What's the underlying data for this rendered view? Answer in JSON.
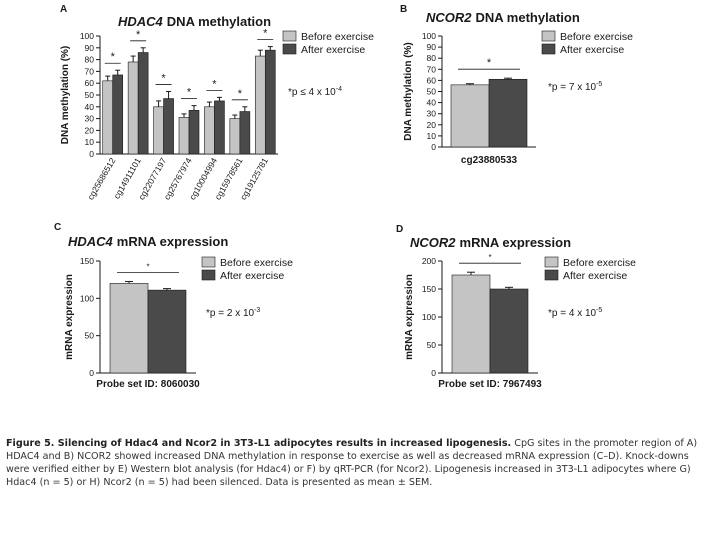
{
  "chart_data": [
    {
      "panel_label": "A",
      "type": "bar",
      "title_gene": "HDAC4",
      "title_rest": "DNA methylation",
      "ylabel": "DNA methylation (%)",
      "xlabel": "",
      "ylim": [
        0,
        100
      ],
      "yticks": [
        0,
        10,
        20,
        30,
        40,
        50,
        60,
        70,
        80,
        90,
        100
      ],
      "categories": [
        "cg25686512",
        "cg14911101",
        "cg22077197",
        "cg25767974",
        "cg10004994",
        "cg15978561",
        "cg19125781"
      ],
      "series": [
        {
          "name": "Before exercise",
          "color": "#c4c4c4",
          "values": [
            62,
            78,
            40,
            31,
            40,
            30,
            83
          ],
          "errors": [
            4,
            5,
            5,
            3,
            4,
            3,
            5
          ]
        },
        {
          "name": "After exercise",
          "color": "#4a4a4a",
          "values": [
            67,
            86,
            47,
            37,
            45,
            36,
            88
          ],
          "errors": [
            4,
            4,
            6,
            4,
            3,
            4,
            3
          ]
        }
      ],
      "significance": [
        "*",
        "*",
        "*",
        "*",
        "*",
        "*",
        "*"
      ],
      "annotation": {
        "prefix": "*p ≤ 4 x 10",
        "exponent": "-4"
      },
      "legend_position": "top-right"
    },
    {
      "panel_label": "B",
      "type": "bar",
      "title_gene": "NCOR2",
      "title_rest": "DNA methylation",
      "ylabel": "DNA methylation (%)",
      "xlabel": "",
      "ylim": [
        0,
        100
      ],
      "yticks": [
        0,
        10,
        20,
        30,
        40,
        50,
        60,
        70,
        80,
        90,
        100
      ],
      "categories": [
        "cg23880533"
      ],
      "series": [
        {
          "name": "Before exercise",
          "color": "#c4c4c4",
          "values": [
            56
          ],
          "errors": [
            1
          ]
        },
        {
          "name": "After exercise",
          "color": "#4a4a4a",
          "values": [
            61
          ],
          "errors": [
            1
          ]
        }
      ],
      "significance": [
        "*"
      ],
      "annotation": {
        "prefix": "*p = 7 x 10",
        "exponent": "-5"
      },
      "legend_position": "top-right"
    },
    {
      "panel_label": "C",
      "type": "bar",
      "title_gene": "HDAC4",
      "title_rest": "mRNA expression",
      "ylabel": "mRNA expression",
      "xlabel": "",
      "ylim": [
        0,
        150
      ],
      "yticks": [
        0,
        50,
        100,
        150
      ],
      "categories": [
        "Probe set ID: 8060030"
      ],
      "series": [
        {
          "name": "Before exercise",
          "color": "#c4c4c4",
          "values": [
            120
          ],
          "errors": [
            2.5
          ]
        },
        {
          "name": "After exercise",
          "color": "#4a4a4a",
          "values": [
            111
          ],
          "errors": [
            2
          ]
        }
      ],
      "significance": [
        "*"
      ],
      "annotation": {
        "prefix": "*p = 2 x 10",
        "exponent": "-3"
      },
      "legend_position": "top-right"
    },
    {
      "panel_label": "D",
      "type": "bar",
      "title_gene": "NCOR2",
      "title_rest": "mRNA expression",
      "ylabel": "mRNA expression",
      "xlabel": "",
      "ylim": [
        0,
        200
      ],
      "yticks": [
        0,
        50,
        100,
        150,
        200
      ],
      "categories": [
        "Probe set ID: 7967493"
      ],
      "series": [
        {
          "name": "Before exercise",
          "color": "#c4c4c4",
          "values": [
            175
          ],
          "errors": [
            5
          ]
        },
        {
          "name": "After exercise",
          "color": "#4a4a4a",
          "values": [
            150
          ],
          "errors": [
            3
          ]
        }
      ],
      "significance": [
        "*"
      ],
      "annotation": {
        "prefix": "*p = 4 x 10",
        "exponent": "-5"
      },
      "legend_position": "top-right"
    }
  ],
  "caption": {
    "heading": "Figure 5. Silencing of Hdac4 and Ncor2 in 3T3-L1 adipocytes results in increased lipogenesis.",
    "body": "CpG sites in the promoter region of A) HDAC4 and B) NCOR2 showed increased DNA methylation in response to exercise as well as decreased mRNA expression (C–D). Knock-downs were verified either by E) Western blot analysis (for Hdac4) or F) by qRT-PCR (for Ncor2). Lipogenesis increased in 3T3-L1 adipocytes where G) Hdac4 (n = 5) or H) Ncor2 (n = 5) had been silenced. Data is presented as mean ± SEM."
  }
}
